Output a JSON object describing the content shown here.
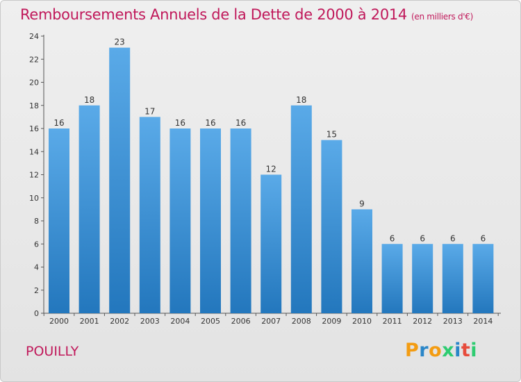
{
  "header": {
    "title": "Remboursements Annuels de la Dette de 2000 à 2014",
    "subtitle": "(en milliers d'€)"
  },
  "footer": {
    "city": "POUILLY",
    "logo_text": "Proxiti"
  },
  "colors": {
    "title": "#c0185a",
    "bar_top": "#5aaae8",
    "bar_bottom": "#2377bd",
    "logo_letters": [
      "#f39c12",
      "#2a86c8",
      "#f39c12",
      "#2ecc71",
      "#2a86c8",
      "#e74c3c",
      "#2ecc71"
    ]
  },
  "chart_data": {
    "type": "bar",
    "categories": [
      "2000",
      "2001",
      "2002",
      "2003",
      "2004",
      "2005",
      "2006",
      "2007",
      "2008",
      "2009",
      "2010",
      "2011",
      "2012",
      "2013",
      "2014"
    ],
    "values": [
      16,
      18,
      23,
      17,
      16,
      16,
      16,
      12,
      18,
      15,
      9,
      6,
      6,
      6,
      6
    ],
    "title": "Remboursements Annuels de la Dette de 2000 à 2014",
    "ylabel": "",
    "xlabel": "",
    "ylim": [
      0,
      24
    ],
    "yticks": [
      0,
      2,
      4,
      6,
      8,
      10,
      12,
      14,
      16,
      18,
      20,
      22,
      24
    ],
    "grid": false,
    "data_labels": true
  }
}
